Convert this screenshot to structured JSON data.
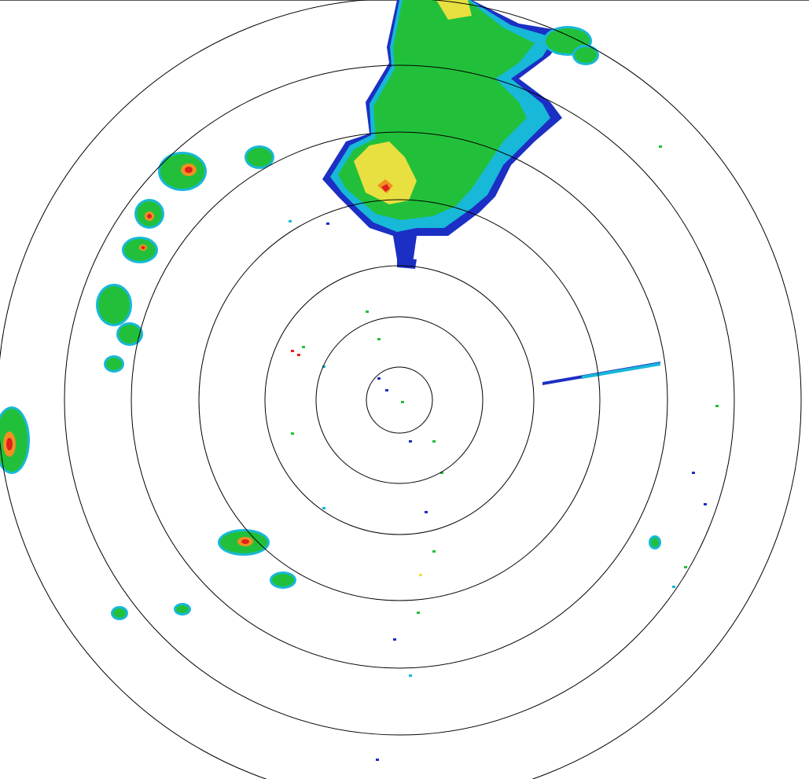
{
  "display": {
    "type": "radar-ppi",
    "range_ring_count": 7,
    "ring_color": "#000000",
    "background": "#ffffff"
  },
  "palette": {
    "weak": "#1c2fc4",
    "light": "#18b8d8",
    "cyan_green": "#20e0a0",
    "moderate": "#22c03a",
    "green_dark": "#2aa830",
    "heavy": "#e8e040",
    "orange": "#f09020",
    "intense": "#e02020"
  }
}
